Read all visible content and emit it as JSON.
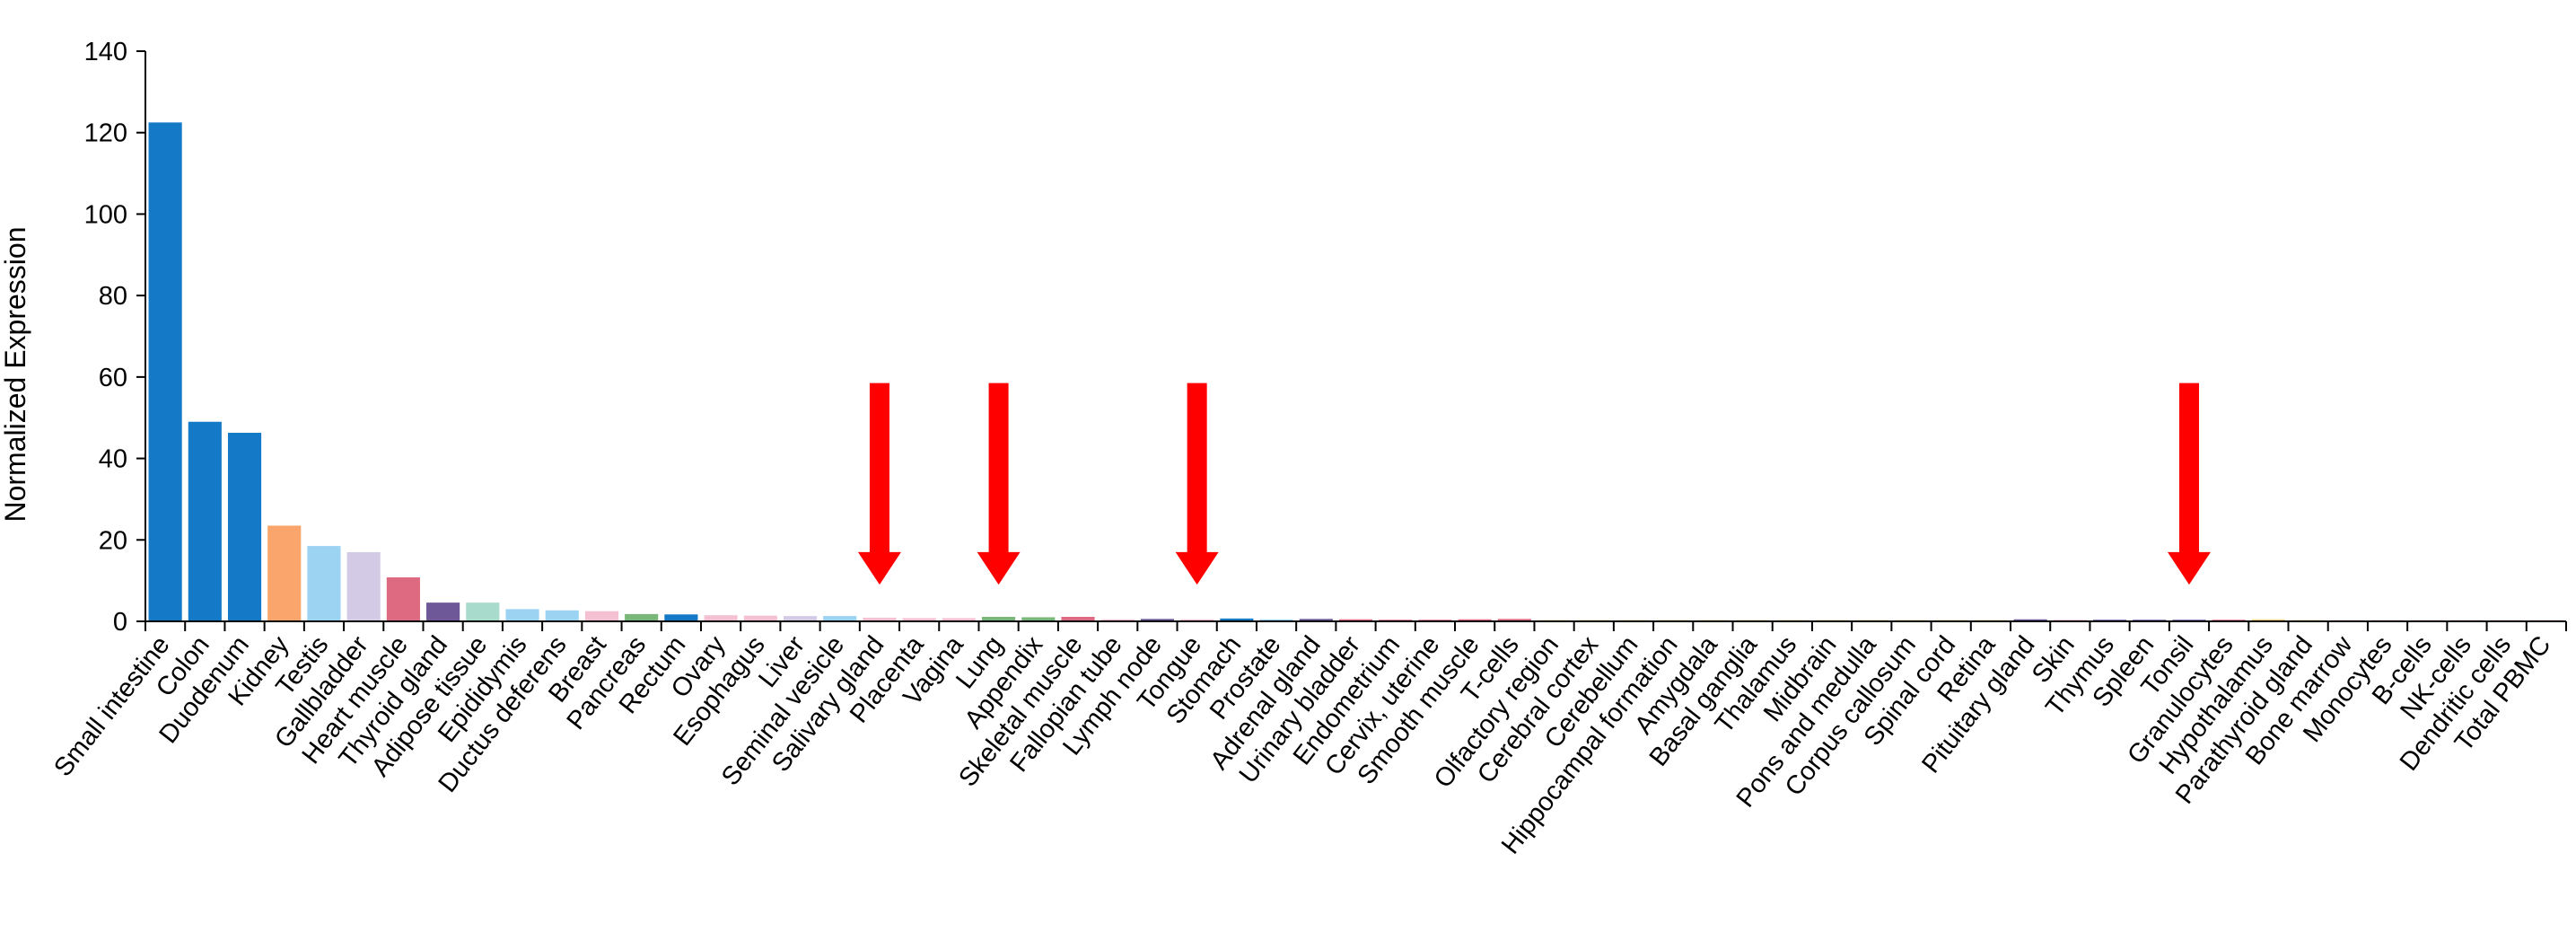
{
  "chart_data": {
    "type": "bar",
    "ylabel": "Normalized Expression",
    "xlabel": "",
    "ylim": [
      0,
      140
    ],
    "yticks": [
      0,
      20,
      40,
      60,
      80,
      100,
      120,
      140
    ],
    "grid": false,
    "categories": [
      "Small intestine",
      "Colon",
      "Duodenum",
      "Kidney",
      "Testis",
      "Gallbladder",
      "Heart muscle",
      "Thyroid gland",
      "Adipose tissue",
      "Epididymis",
      "Ductus deferens",
      "Breast",
      "Pancreas",
      "Rectum",
      "Ovary",
      "Esophagus",
      "Liver",
      "Seminal vesicle",
      "Salivary gland",
      "Placenta",
      "Vagina",
      "Lung",
      "Appendix",
      "Skeletal muscle",
      "Fallopian tube",
      "Lymph node",
      "Tongue",
      "Stomach",
      "Prostate",
      "Adrenal gland",
      "Urinary bladder",
      "Endometrium",
      "Cervix, uterine",
      "Smooth muscle",
      "T-cells",
      "Olfactory region",
      "Cerebral cortex",
      "Cerebellum",
      "Hippocampal formation",
      "Amygdala",
      "Basal ganglia",
      "Thalamus",
      "Midbrain",
      "Pons and medulla",
      "Corpus callosum",
      "Spinal cord",
      "Retina",
      "Pituitary gland",
      "Skin",
      "Thymus",
      "Spleen",
      "Tonsil",
      "Granulocytes",
      "Hypothalamus",
      "Parathyroid gland",
      "Bone marrow",
      "Monocytes",
      "B-cells",
      "NK-cells",
      "Dendritic cells",
      "Total PBMC"
    ],
    "values": [
      122.5,
      49,
      46.3,
      23.5,
      18.5,
      17,
      10.8,
      4.6,
      4.6,
      3,
      2.7,
      2.5,
      1.8,
      1.7,
      1.5,
      1.4,
      1.3,
      1.3,
      0.9,
      0.8,
      0.8,
      1.1,
      1,
      1.1,
      0.5,
      0.6,
      0.5,
      0.7,
      0.5,
      0.6,
      0.5,
      0.4,
      0.4,
      0.5,
      0.6,
      0.3,
      0.3,
      0.3,
      0.3,
      0.3,
      0.3,
      0.3,
      0.3,
      0.3,
      0.3,
      0.3,
      0.3,
      0.5,
      0.4,
      0.4,
      0.4,
      0.4,
      0.4,
      0.5,
      0.3,
      0.05,
      0.05,
      0.05,
      0.05,
      0.05,
      0.05
    ],
    "colors": [
      "#1479c6",
      "#1479c6",
      "#1479c6",
      "#f9a56b",
      "#9dd3f2",
      "#d3cbe6",
      "#dd6a80",
      "#6e5898",
      "#a8dbcb",
      "#9dd3f2",
      "#9dd3f2",
      "#f6c0d3",
      "#79b779",
      "#1479c6",
      "#f6c0d3",
      "#f6c0d3",
      "#d3cbe6",
      "#9dd3f2",
      "#f6c0d3",
      "#f6c0d3",
      "#f6c0d3",
      "#79b779",
      "#79b779",
      "#dd6a80",
      "#f6c0d3",
      "#6e5898",
      "#f6c0d3",
      "#1479c6",
      "#9dd3f2",
      "#6e5898",
      "#dd6a80",
      "#dd6a80",
      "#dd6a80",
      "#dd6a80",
      "#dd6a80",
      "#f2d27a",
      "#f2d27a",
      "#f2d27a",
      "#f2d27a",
      "#f2d27a",
      "#f2d27a",
      "#f2d27a",
      "#f2d27a",
      "#f2d27a",
      "#f2d27a",
      "#f2d27a",
      "#f2d27a",
      "#6e5898",
      "#f6c0d3",
      "#6e5898",
      "#6e5898",
      "#6e5898",
      "#dd6a80",
      "#f2d27a",
      "#f2d27a",
      "#dd6a80",
      "#dd6a80",
      "#dd6a80",
      "#dd6a80",
      "#dd6a80",
      "#dd6a80"
    ],
    "annotations": {
      "type": "arrow",
      "color": "#ff0000",
      "points_to": [
        "Salivary gland",
        "Lung",
        "Tongue",
        "Tonsil"
      ]
    }
  }
}
